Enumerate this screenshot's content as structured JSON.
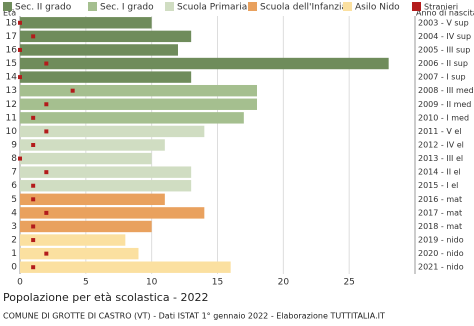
{
  "chart_data": {
    "type": "bar",
    "orientation": "horizontal",
    "title": "Popolazione per età scolastica - 2022",
    "footer": "COMUNE DI GROTTE DI CASTRO (VT) - Dati ISTAT 1° gennaio 2022 - Elaborazione TUTTITALIA.IT",
    "y_label": "Età",
    "y2_label": "Anno di nascita",
    "categories": [
      "18",
      "17",
      "16",
      "15",
      "14",
      "13",
      "12",
      "11",
      "10",
      "9",
      "8",
      "7",
      "6",
      "5",
      "4",
      "3",
      "2",
      "1",
      "0"
    ],
    "right_labels": [
      "2003 - V sup",
      "2004 - IV sup",
      "2005 - III sup",
      "2006 - II sup",
      "2007 - I sup",
      "2008 - III med",
      "2009 - II med",
      "2010 - I med",
      "2011 - V el",
      "2012 - IV el",
      "2013 - III el",
      "2014 - II el",
      "2015 - I el",
      "2016 - mat",
      "2017 - mat",
      "2018 - mat",
      "2019 - nido",
      "2020 - nido",
      "2021 - nido"
    ],
    "series": [
      {
        "name": "Sec. II grado",
        "color": "#6f8c5b",
        "values": [
          10,
          13,
          12,
          28,
          13,
          null,
          null,
          null,
          null,
          null,
          null,
          null,
          null,
          null,
          null,
          null,
          null,
          null,
          null
        ]
      },
      {
        "name": "Sec. I grado",
        "color": "#a5bf8f",
        "values": [
          null,
          null,
          null,
          null,
          null,
          18,
          18,
          17,
          null,
          null,
          null,
          null,
          null,
          null,
          null,
          null,
          null,
          null,
          null
        ]
      },
      {
        "name": "Scuola Primaria",
        "color": "#d0ddc2",
        "values": [
          null,
          null,
          null,
          null,
          null,
          null,
          null,
          null,
          14,
          11,
          10,
          13,
          13,
          null,
          null,
          null,
          null,
          null,
          null
        ]
      },
      {
        "name": "Scuola dell'Infanzia",
        "color": "#e9a15e",
        "values": [
          null,
          null,
          null,
          null,
          null,
          null,
          null,
          null,
          null,
          null,
          null,
          null,
          null,
          11,
          14,
          10,
          null,
          null,
          null
        ]
      },
      {
        "name": "Asilo Nido",
        "color": "#fbe0a0",
        "values": [
          null,
          null,
          null,
          null,
          null,
          null,
          null,
          null,
          null,
          null,
          null,
          null,
          null,
          null,
          null,
          null,
          8,
          9,
          16
        ]
      }
    ],
    "foreigners": {
      "name": "Stranieri",
      "color": "#b31b1b",
      "values": [
        0,
        1,
        0,
        2,
        0,
        4,
        2,
        1,
        2,
        1,
        0,
        2,
        1,
        1,
        2,
        1,
        1,
        2,
        1
      ]
    },
    "xlim": [
      0,
      30
    ],
    "xticks": [
      0,
      5,
      10,
      15,
      20,
      25
    ],
    "grid": true
  }
}
